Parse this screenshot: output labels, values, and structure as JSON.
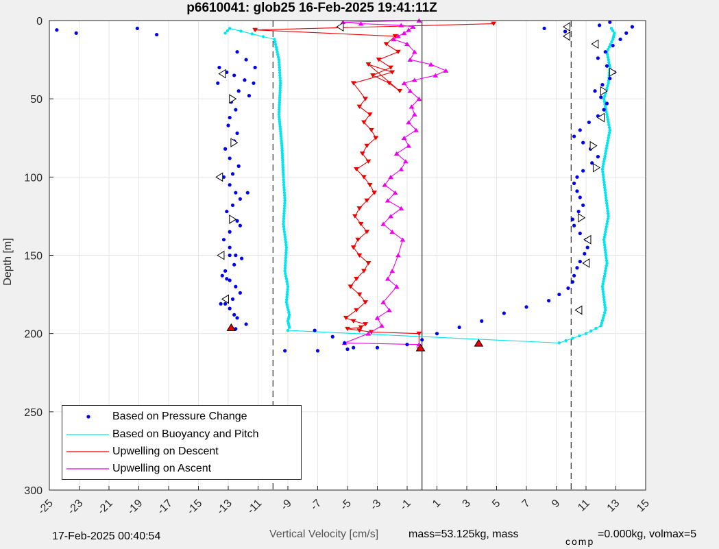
{
  "footer": {
    "timestamp": "17-Feb-2025 00:40:54",
    "params_prefix": "mass=53.125kg, mass",
    "params_subscript": "comp",
    "params_suffix": "=0.000kg, volmax=5"
  },
  "chart_data": {
    "type": "scatter",
    "title": "p6610041: glob25 16-Feb-2025 19:41:11Z",
    "xlabel": "Vertical Velocity [cm/s]",
    "ylabel": "Depth [m]",
    "xlim": [
      -25,
      15
    ],
    "ylim": [
      300,
      0
    ],
    "y_reversed": true,
    "xticks": [
      "-25",
      "-23",
      "-21",
      "-19",
      "-17",
      "-15",
      "-13",
      "-11",
      "-9",
      "-7",
      "-5",
      "-3",
      "-1",
      "1",
      "3",
      "5",
      "7",
      "9",
      "11",
      "13",
      "15"
    ],
    "yticks": [
      "0",
      "50",
      "100",
      "150",
      "200",
      "250",
      "300"
    ],
    "grid": true,
    "legend_location": "bottom-left",
    "reference_lines": {
      "dashed_x": [
        -10,
        10
      ],
      "solid_x": [
        0
      ]
    },
    "series": [
      {
        "name": "Based on Pressure Change",
        "color": "#0000ee",
        "marker": "dot",
        "dive_x": [
          -24.5,
          -23.2,
          -19.1,
          -17.8,
          -13.6,
          -13.1,
          -12.4,
          -11.8,
          -11.2,
          -12.6,
          -11.9,
          -13.7,
          -12.3,
          -11.6,
          -11.3,
          -12.8,
          -12.5,
          -12.9,
          -13.0,
          -12.4,
          -12.6,
          -13.2,
          -12.9,
          -12.3,
          -12.7,
          -13.3,
          -12.9,
          -12.5,
          -12.2,
          -12.7,
          -13.1,
          -12.8,
          -12.2,
          -12.9,
          -13.3,
          -12.9,
          -12.5,
          -12.1,
          -12.6,
          -13.2,
          -13.4,
          -12.9,
          -12.5,
          -12.2,
          -12.7,
          -13.2,
          -12.9,
          -12.6,
          -12.4,
          -11.8,
          -12.5,
          -13.1,
          -13.5,
          -12.9,
          -12.4,
          -11.7
        ],
        "dive_y": [
          6,
          8,
          5,
          9,
          30,
          33,
          20,
          25,
          30,
          35,
          38,
          40,
          45,
          48,
          40,
          52,
          57,
          62,
          67,
          72,
          77,
          82,
          88,
          93,
          98,
          100,
          105,
          110,
          114,
          118,
          122,
          127,
          131,
          135,
          140,
          145,
          150,
          152,
          156,
          160,
          163,
          166,
          170,
          174,
          178,
          181,
          184,
          188,
          190,
          194,
          197,
          165,
          181,
          150,
          128,
          110
        ],
        "climb_x": [
          -9.2,
          -7.0,
          -5.0,
          -3.0,
          -1.0,
          0.0,
          1.0,
          2.5,
          4.0,
          5.5,
          7.0,
          8.5,
          9.2,
          9.8,
          10.1,
          10.2,
          10.4,
          10.6,
          10.9,
          11.1,
          11.0,
          10.6,
          10.2,
          10.1,
          10.5,
          10.8,
          10.6,
          10.4,
          10.2,
          10.4,
          10.8,
          11.4,
          11.8,
          11.3,
          10.8,
          10.2,
          10.6,
          11.2,
          11.8,
          12.2,
          12.4,
          12.0,
          11.6,
          12.1,
          12.6,
          12.9,
          12.4,
          11.8,
          12.3,
          12.8,
          13.3,
          13.7,
          14.1,
          12.6,
          11.9,
          8.2,
          9.6
        ],
        "dive_turn_x": [
          -7.2,
          -6.0,
          -5.2,
          -4.6
        ],
        "dive_turn_y": [
          198,
          202,
          206,
          209
        ],
        "climb_turn_y": [
          211,
          211,
          210,
          209,
          207,
          204,
          200,
          196,
          192,
          187,
          183,
          179,
          175,
          171,
          167,
          163,
          158,
          154,
          149,
          145,
          140,
          136,
          131,
          127,
          122,
          118,
          113,
          109,
          104,
          100,
          96,
          91,
          87,
          82,
          78,
          74,
          70,
          65,
          61,
          57,
          53,
          49,
          45,
          41,
          37,
          33,
          29,
          24,
          20,
          16,
          12,
          8,
          4,
          1,
          3,
          5,
          7
        ]
      },
      {
        "name": "Based on Buoyancy and Pitch",
        "color": "#00e5ee",
        "marker": "dot-line",
        "dive_x": [
          -13.2,
          -12.9,
          -9.9,
          -9.6,
          -9.5,
          -9.6,
          -9.4,
          -9.3,
          -9.2,
          -9.3,
          -9.1,
          -9.2,
          -9.0,
          -9.1,
          -8.9,
          -9.0,
          -8.9,
          -9.0
        ],
        "dive_y": [
          8,
          5,
          12,
          25,
          40,
          60,
          80,
          100,
          115,
          130,
          145,
          160,
          170,
          180,
          188,
          192,
          196,
          198
        ],
        "climb_x": [
          9.2,
          11.0,
          12.0,
          12.3,
          12.1,
          12.4,
          12.2,
          12.5,
          12.3,
          12.1,
          12.4,
          12.6,
          12.4,
          12.2,
          12.5,
          12.6,
          12.4,
          12.8,
          12.9,
          12.7
        ],
        "climb_y": [
          206,
          200,
          195,
          185,
          170,
          155,
          140,
          125,
          110,
          95,
          80,
          70,
          60,
          50,
          40,
          30,
          20,
          12,
          8,
          5
        ]
      },
      {
        "name": "Upwelling on Descent",
        "color": "#ee0000",
        "marker": "triangle-down",
        "x": [
          4.8,
          -11.2,
          -1.8,
          -2.4,
          -1.6,
          -2.9,
          -2.1,
          -3.3,
          -2.2,
          -1.5,
          -3.6,
          -2.0,
          -4.6,
          -3.8,
          -4.2,
          -3.5,
          -3.9,
          -3.4,
          -3.1,
          -3.7,
          -4.0,
          -3.6,
          -4.4,
          -3.9,
          -3.5,
          -3.2,
          -3.7,
          -4.2,
          -4.5,
          -4.1,
          -3.7,
          -4.3,
          -4.6,
          -4.2,
          -3.6,
          -3.9,
          -4.4,
          -4.8,
          -4.2,
          -3.8,
          -4.4,
          -5.1,
          -4.6,
          -3.8,
          -4.1,
          -5.0,
          -4.2,
          -3.4,
          -0.2,
          -0.2
        ],
        "y": [
          2,
          6,
          10,
          15,
          20,
          25,
          30,
          35,
          40,
          45,
          28,
          33,
          40,
          50,
          55,
          60,
          65,
          70,
          75,
          80,
          85,
          90,
          95,
          100,
          105,
          110,
          115,
          120,
          125,
          130,
          135,
          140,
          145,
          150,
          155,
          160,
          165,
          170,
          175,
          180,
          185,
          190,
          192,
          194,
          196,
          197,
          198,
          199,
          200,
          210
        ]
      },
      {
        "name": "Upwelling on Ascent",
        "color": "#ee00ee",
        "marker": "triangle-up",
        "x": [
          -0.2,
          -5.2,
          -3.6,
          -2.7,
          -3.0,
          -2.2,
          -2.6,
          -1.7,
          -2.3,
          -2.0,
          -1.6,
          -1.3,
          -2.0,
          -2.6,
          -2.1,
          -1.4,
          -2.3,
          -1.8,
          -2.5,
          -2.1,
          -1.4,
          -1.1,
          -1.7,
          -0.9,
          -1.2,
          -0.4,
          -0.9,
          -0.5,
          -0.7,
          -0.2,
          -0.8,
          -1.2,
          -0.5,
          0.9,
          1.6,
          0.6,
          -0.8,
          -0.5,
          -1.0,
          -1.9,
          -1.6,
          -1.2,
          -0.9,
          -0.6,
          -1.4,
          -4.1,
          -5.3,
          -0.2
        ],
        "y": [
          207,
          206,
          200,
          195,
          190,
          185,
          180,
          170,
          165,
          160,
          150,
          140,
          135,
          130,
          125,
          120,
          115,
          110,
          105,
          100,
          95,
          90,
          85,
          80,
          75,
          70,
          65,
          60,
          55,
          50,
          45,
          40,
          38,
          35,
          32,
          28,
          25,
          20,
          15,
          12,
          10,
          8,
          6,
          4,
          3,
          2,
          1,
          0
        ]
      }
    ],
    "turn_markers": {
      "white_left": [
        [
          -13.4,
          34
        ],
        [
          -13.6,
          100
        ],
        [
          -13.5,
          150
        ],
        [
          -13.2,
          178
        ],
        [
          -5.5,
          4
        ],
        [
          9.7,
          4
        ],
        [
          9.7,
          10
        ],
        [
          11.6,
          15
        ],
        [
          12.0,
          62
        ],
        [
          11.1,
          140
        ],
        [
          11.0,
          155
        ],
        [
          10.5,
          185
        ]
      ],
      "white_right": [
        [
          -12.7,
          50
        ],
        [
          -12.6,
          78
        ],
        [
          -12.7,
          127
        ],
        [
          12.8,
          33
        ],
        [
          12.2,
          45
        ],
        [
          11.5,
          80
        ],
        [
          11.7,
          94
        ],
        [
          10.7,
          126
        ]
      ],
      "red_up": [
        [
          -12.8,
          196
        ],
        [
          -0.1,
          209
        ],
        [
          3.8,
          206
        ]
      ]
    }
  }
}
